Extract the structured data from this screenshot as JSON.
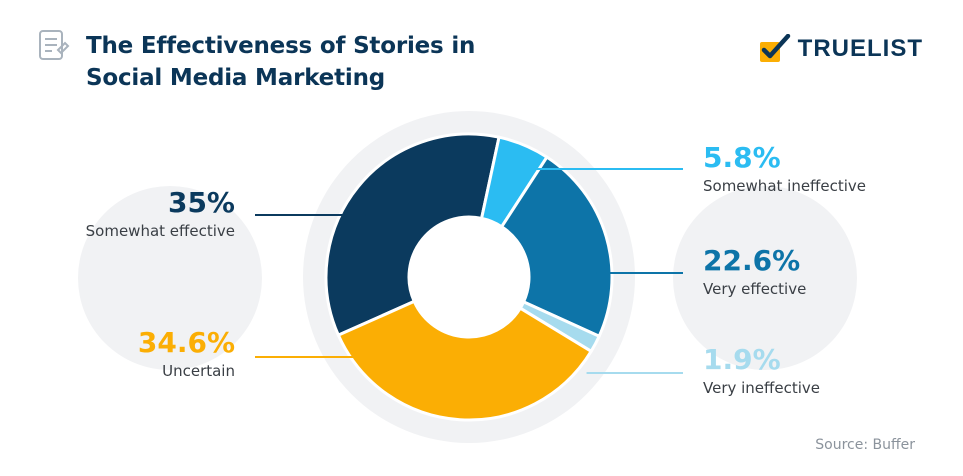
{
  "header": {
    "title_line1": "The Effectiveness of Stories in",
    "title_line2": "Social Media Marketing",
    "brand": "TRUELIST",
    "source": "Source: Buffer"
  },
  "chart_data": {
    "type": "pie",
    "donut": true,
    "title": "The Effectiveness of Stories in Social Media Marketing",
    "slices": [
      {
        "label": "Somewhat effective",
        "value": 35,
        "value_label": "35%",
        "color": "#0b3a5e",
        "label_color": "#0b3a5e",
        "side": "left"
      },
      {
        "label": "Somewhat ineffective",
        "value": 5.8,
        "value_label": "5.8%",
        "color": "#2bbcf2",
        "label_color": "#2bbcf2",
        "side": "right"
      },
      {
        "label": "Very effective",
        "value": 22.6,
        "value_label": "22.6%",
        "color": "#0d74a8",
        "label_color": "#0d74a8",
        "side": "right"
      },
      {
        "label": "Very ineffective",
        "value": 1.9,
        "value_label": "1.9%",
        "color": "#a6dbee",
        "label_color": "#a6dbee",
        "side": "right"
      },
      {
        "label": "Uncertain",
        "value": 34.6,
        "value_label": "34.6%",
        "color": "#fbae04",
        "label_color": "#fbae04",
        "side": "left"
      }
    ]
  }
}
